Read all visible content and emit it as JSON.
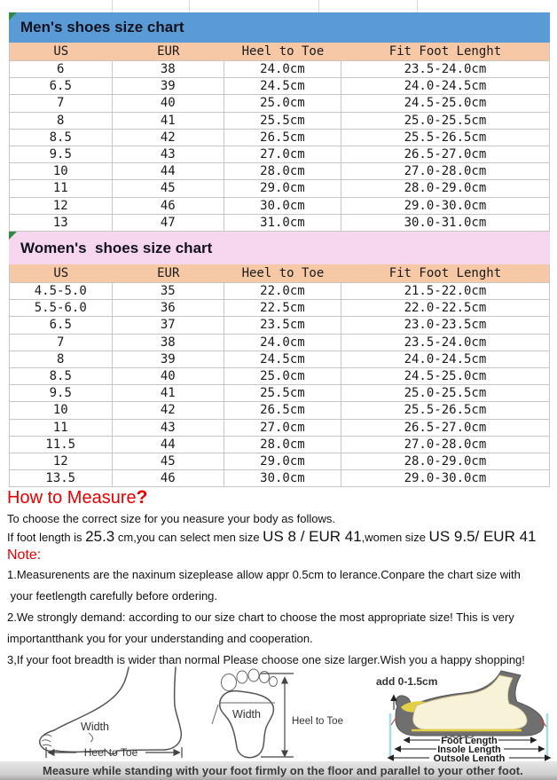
{
  "colors": {
    "men_header_bg": "#5b9bd5",
    "women_header_bg": "#f7d7ef",
    "column_header_bg": "#f6c8a6",
    "grid_line": "#c6c6c6",
    "accent_red": "#e60000",
    "shoe_sole_gray": "#6f6f6f",
    "shoe_foot_cream": "#f7f3d8",
    "shoe_insole_yellow": "#e4cf49",
    "guide_cyan": "#a5dde2",
    "footer_bg": "#cfcfcf"
  },
  "men_chart": {
    "title": "Men's shoes size chart",
    "columns": [
      "US",
      "EUR",
      "Heel to Toe",
      "Fit Foot Lenght"
    ],
    "rows": [
      [
        "6",
        "38",
        "24.0cm",
        "23.5-24.0cm"
      ],
      [
        "6.5",
        "39",
        "24.5cm",
        "24.0-24.5cm"
      ],
      [
        "7",
        "40",
        "25.0cm",
        "24.5-25.0cm"
      ],
      [
        "8",
        "41",
        "25.5cm",
        "25.0-25.5cm"
      ],
      [
        "8.5",
        "42",
        "26.5cm",
        "25.5-26.5cm"
      ],
      [
        "9.5",
        "43",
        "27.0cm",
        "26.5-27.0cm"
      ],
      [
        "10",
        "44",
        "28.0cm",
        "27.0-28.0cm"
      ],
      [
        "11",
        "45",
        "29.0cm",
        "28.0-29.0cm"
      ],
      [
        "12",
        "46",
        "30.0cm",
        "29.0-30.0cm"
      ],
      [
        "13",
        "47",
        "31.0cm",
        "30.0-31.0cm"
      ]
    ]
  },
  "women_chart": {
    "title": "Women's  shoes size chart",
    "columns": [
      "US",
      "EUR",
      "Heel to Toe",
      "Fit Foot Lenght"
    ],
    "rows": [
      [
        "4.5-5.0",
        "35",
        "22.0cm",
        "21.5-22.0cm"
      ],
      [
        "5.5-6.0",
        "36",
        "22.5cm",
        "22.0-22.5cm"
      ],
      [
        "6.5",
        "37",
        "23.5cm",
        "23.0-23.5cm"
      ],
      [
        "7",
        "38",
        "24.0cm",
        "23.5-24.0cm"
      ],
      [
        "8",
        "39",
        "24.5cm",
        "24.0-24.5cm"
      ],
      [
        "8.5",
        "40",
        "25.0cm",
        "24.5-25.0cm"
      ],
      [
        "9.5",
        "41",
        "25.5cm",
        "25.0-25.5cm"
      ],
      [
        "10",
        "42",
        "26.5cm",
        "25.5-26.5cm"
      ],
      [
        "11",
        "43",
        "27.0cm",
        "26.5-27.0cm"
      ],
      [
        "11.5",
        "44",
        "28.0cm",
        "27.0-28.0cm"
      ],
      [
        "12",
        "45",
        "29.0cm",
        "28.0-29.0cm"
      ],
      [
        "13.5",
        "46",
        "30.0cm",
        "29.0-30.0cm"
      ]
    ]
  },
  "measure": {
    "title": "How to Measure",
    "title_mark": "?",
    "intro": "To choose the correct size for you neasure your body as follows.",
    "size_line": {
      "p1": "If foot length is ",
      "v1": "25.3",
      "p2": " cm,you can select men size ",
      "v2": "US 8 / EUR 41",
      "p3": ",women size ",
      "v3": "US 9.5/ EUR 41"
    },
    "note_label": "Note:",
    "note_lines": [
      "1.Measurenents are the naxinum sizeplease allow appr 0.5cm to lerance.Conpare the chart size with",
      " your feetlength carefully before ordering.",
      "2.We strongly demand: according to our size chart to choose the most appropriate size! This is very",
      "importantthank you for your understanding and cooperation.",
      "3,If your foot breadth is wider than normal Please choose one size larger.Wish you a happy shopping!"
    ]
  },
  "diagrams": {
    "side_foot": {
      "width_label": "Width",
      "length_label": "Heel to Toe"
    },
    "footprint": {
      "width_label": "Width",
      "length_label": "Heel to Toe"
    },
    "shoe_profile": {
      "add_label": "add 0-1.5cm",
      "foot_length_label": "Foot Length",
      "insole_length_label": "Insole Length",
      "outsole_length_label": "Outsole Length"
    }
  },
  "footer": {
    "text": "Measure while standing with your foot firmly on the floor and parallel to your other foot."
  }
}
